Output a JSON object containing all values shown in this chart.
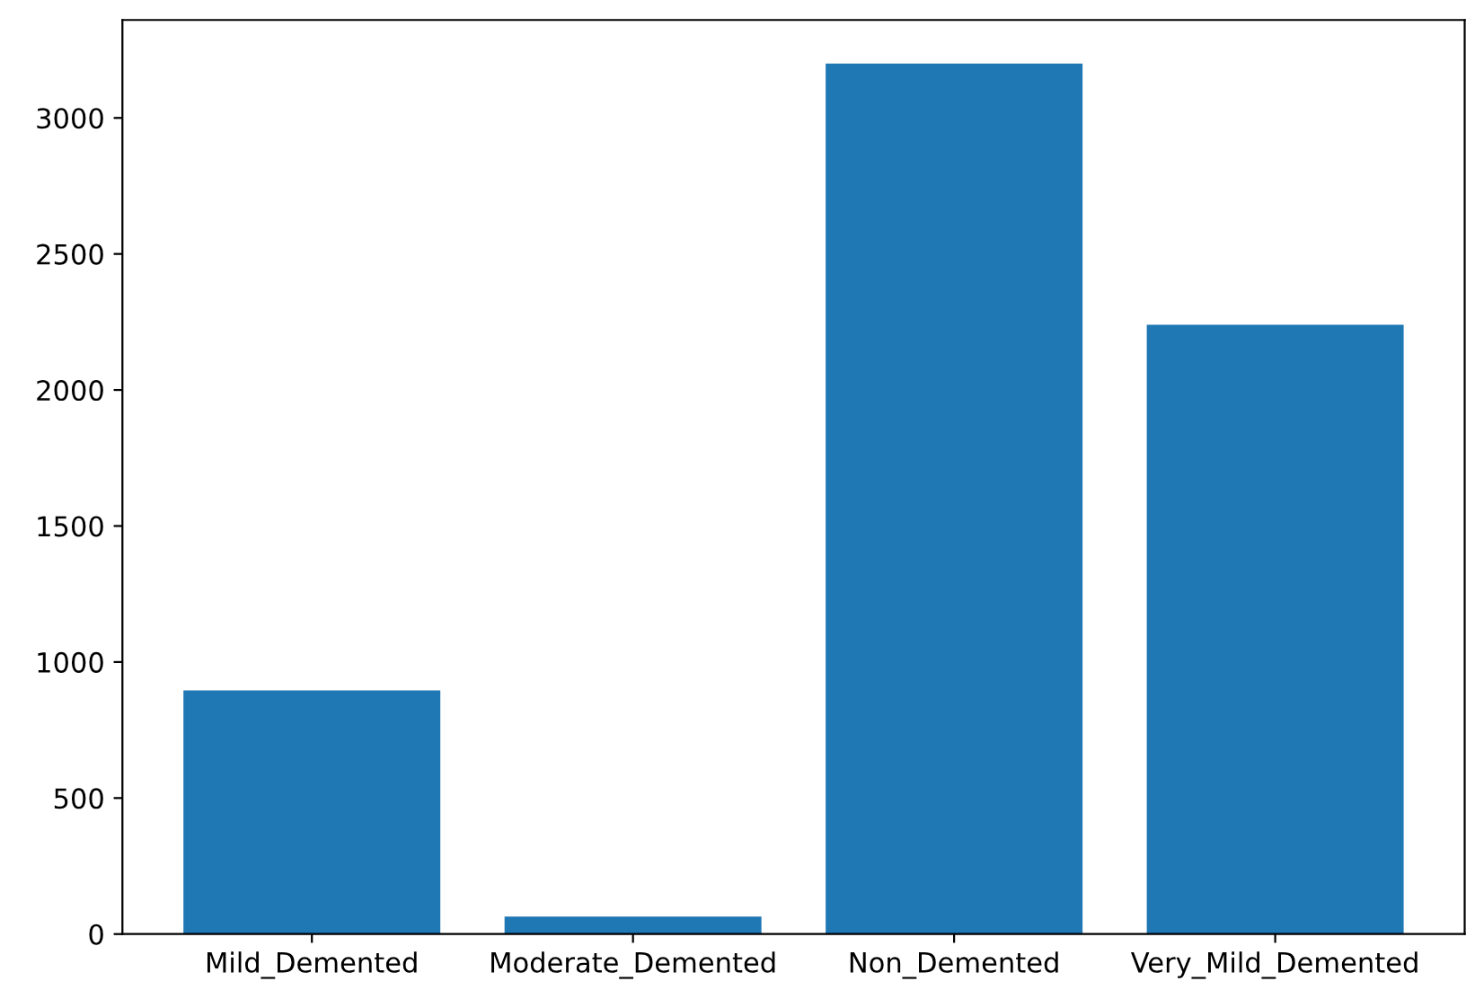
{
  "chart_data": {
    "type": "bar",
    "categories": [
      "Mild_Demented",
      "Moderate_Demented",
      "Non_Demented",
      "Very_Mild_Demented"
    ],
    "values": [
      896,
      64,
      3200,
      2240
    ],
    "color": "#1f77b4",
    "ylim": [
      0,
      3360
    ],
    "yticks": [
      0,
      500,
      1000,
      1500,
      2000,
      2500,
      3000
    ],
    "grid": false
  }
}
